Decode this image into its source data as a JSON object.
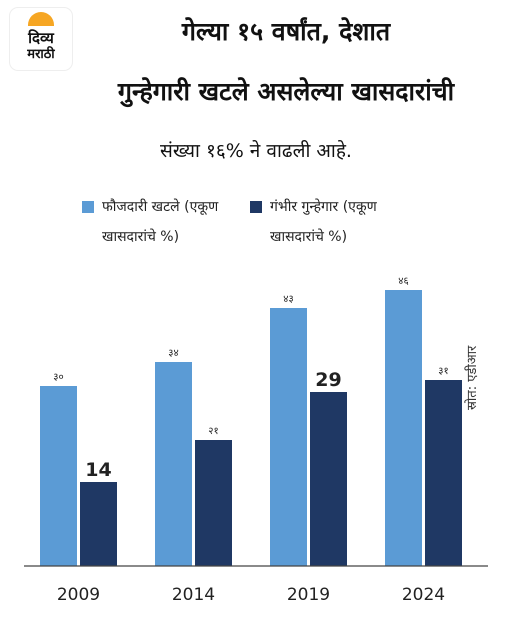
{
  "logo": {
    "line1": "दिव्य",
    "line2": "मराठी"
  },
  "title": {
    "line1": "गेल्या १५ वर्षांत, देशात",
    "line2": "गुन्हेगारी खटले असलेल्या खासदारांची"
  },
  "subtitle": "संख्या १६% ने वाढली आहे.",
  "legend": [
    {
      "line1": "फौजदारी खटले (एकूण",
      "line2": "खासदारांचे %)",
      "color": "#5b9bd5"
    },
    {
      "line1": "गंभीर गुन्हेगार (एकूण",
      "line2": "खासदारांचे %)",
      "color": "#1f3864"
    }
  ],
  "source": "स्रोत: एडीआर",
  "chart_data": {
    "type": "bar",
    "categories": [
      "2009",
      "2014",
      "2019",
      "2024"
    ],
    "series": [
      {
        "name": "फौजदारी खटले (एकूण खासदारांचे %)",
        "values": [
          30,
          34,
          43,
          46
        ],
        "labels": [
          "३०",
          "३४",
          "४३",
          "४६"
        ],
        "color": "#5b9bd5"
      },
      {
        "name": "गंभीर गुन्हेगार (एकूण खासदारांचे %)",
        "values": [
          14,
          21,
          29,
          31
        ],
        "labels": [
          "14",
          "२१",
          "29",
          "३१"
        ],
        "color": "#1f3864"
      }
    ],
    "ylim": [
      0,
      50
    ],
    "grid": false
  }
}
